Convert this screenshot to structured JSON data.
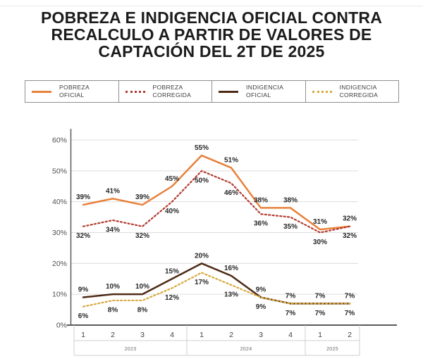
{
  "title": {
    "line1": "POBREZA E INDIGENCIA OFICIAL CONTRA",
    "line2": "RECALCULO A PARTIR DE VALORES DE",
    "line3": "CAPTACIÓN DEL 2T DE 2025"
  },
  "chart_data": {
    "type": "line",
    "title": "POBREZA E INDIGENCIA OFICIAL CONTRA RECALCULO A PARTIR DE VALORES DE CAPTACIÓN DEL 2T DE 2025",
    "unit": "%",
    "grid": true,
    "legend_position": "top",
    "x_quarters": [
      "1",
      "2",
      "3",
      "4",
      "1",
      "2",
      "3",
      "4",
      "1",
      "2"
    ],
    "year_groups": [
      {
        "label": "2023",
        "quarters": 4
      },
      {
        "label": "2024",
        "quarters": 4
      },
      {
        "label": "2025",
        "quarters": 2
      }
    ],
    "y_ticks": [
      "0%",
      "10%",
      "20%",
      "30%",
      "40%",
      "50%",
      "60%"
    ],
    "ylim": [
      0,
      62
    ],
    "series": [
      {
        "name": "POBREZA OFICIAL",
        "legend_lines": [
          "POBREZA",
          "OFICIAL"
        ],
        "style": "solid",
        "color": "#E8813A",
        "label_position": "above",
        "values": [
          39,
          41,
          39,
          45,
          55,
          51,
          38,
          38,
          31,
          32
        ]
      },
      {
        "name": "POBREZA CORREGIDA",
        "legend_lines": [
          "POBREZA",
          "CORREGIDA"
        ],
        "style": "dotted",
        "color": "#B23B30",
        "label_position": "below",
        "values": [
          32,
          34,
          32,
          40,
          50,
          46,
          36,
          35,
          30,
          32
        ]
      },
      {
        "name": "INDIGENCIA OFICIAL",
        "legend_lines": [
          "INDIGENCIA",
          "OFICIAL"
        ],
        "style": "solid",
        "color": "#4E2A15",
        "label_position": "above",
        "values": [
          9,
          10,
          10,
          15,
          20,
          16,
          9,
          7,
          7,
          7
        ]
      },
      {
        "name": "INDIGENCIA CORREGIDA",
        "legend_lines": [
          "INDIGENCIA",
          "CORREGIDA"
        ],
        "style": "dotted",
        "color": "#D8A93E",
        "label_position": "below",
        "values": [
          6,
          8,
          8,
          12,
          17,
          13,
          9,
          7,
          7,
          7
        ]
      }
    ],
    "colors": {
      "grid": "#dcdcdc",
      "axis": "#5a5a5a",
      "table_line": "#cfcfcf",
      "tick_text": "#4f4f4f",
      "quarter_text": "#3f3f3f",
      "year_text": "#6a6a6a",
      "label_text": "#272727",
      "title_text": "#1c1c1c"
    }
  }
}
